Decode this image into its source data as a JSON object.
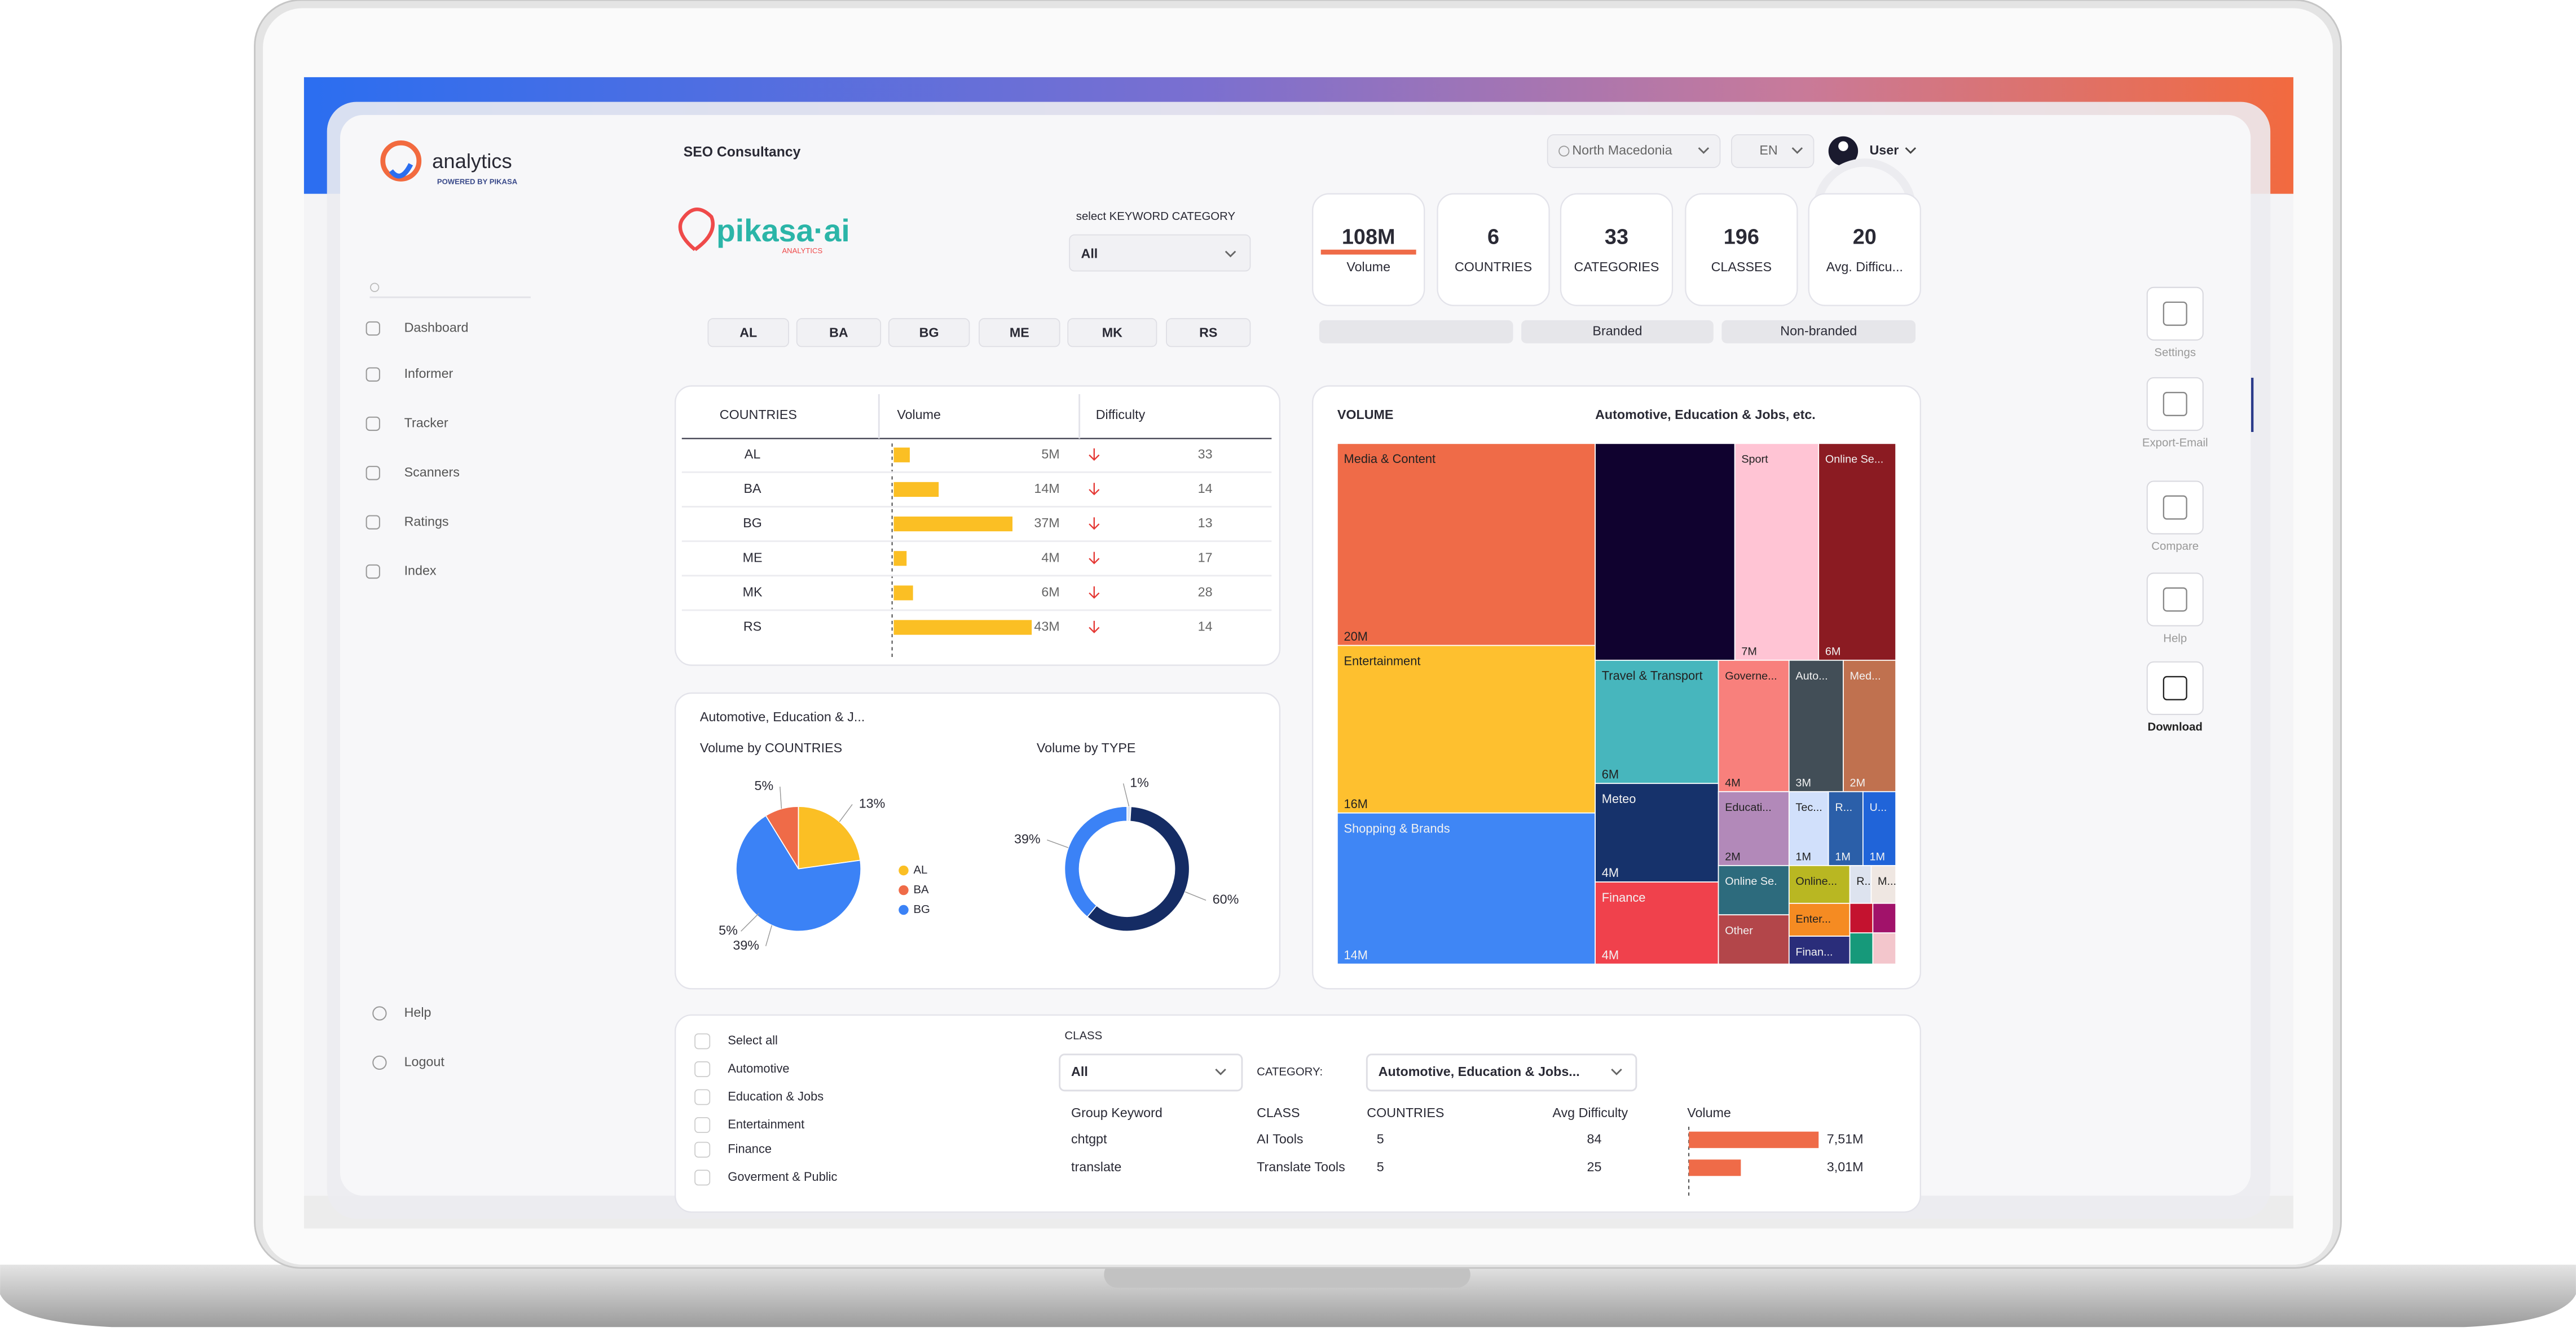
{
  "header": {
    "app_name": "analytics",
    "powered_by": "POWERED BY PIKASA",
    "page_title": "SEO Consultancy",
    "region": "North Macedonia",
    "language": "EN",
    "user": "User"
  },
  "brand": {
    "name": "pikasa·ai",
    "tagline": "ANALYTICS"
  },
  "nav": {
    "items": [
      "Dashboard",
      "Informer",
      "Tracker",
      "Scanners",
      "Ratings",
      "Index"
    ],
    "bottom": [
      "Help",
      "Logout"
    ]
  },
  "filters": {
    "keyword_category_label": "select KEYWORD CATEGORY",
    "keyword_category": "All",
    "countries": [
      "AL",
      "BA",
      "BG",
      "ME",
      "MK",
      "RS"
    ],
    "types": [
      "Branded",
      "Non-branded"
    ]
  },
  "kpis": [
    {
      "value": "108M",
      "label": "Volume"
    },
    {
      "value": "6",
      "label": "COUNTRIES"
    },
    {
      "value": "33",
      "label": "CATEGORIES"
    },
    {
      "value": "196",
      "label": "CLASSES"
    },
    {
      "value": "20",
      "label": "Avg. Difficu..."
    }
  ],
  "countries_table": {
    "columns": [
      "COUNTRIES",
      "Volume",
      "Difficulty"
    ],
    "bar_color": "#fbbf24",
    "rows": [
      {
        "country": "AL",
        "volume": 5,
        "volume_label": "5M",
        "difficulty": 33
      },
      {
        "country": "BA",
        "volume": 14,
        "volume_label": "14M",
        "difficulty": 14
      },
      {
        "country": "BG",
        "volume": 37,
        "volume_label": "37M",
        "difficulty": 13
      },
      {
        "country": "ME",
        "volume": 4,
        "volume_label": "4M",
        "difficulty": 17
      },
      {
        "country": "MK",
        "volume": 6,
        "volume_label": "6M",
        "difficulty": 28
      },
      {
        "country": "RS",
        "volume": 43,
        "volume_label": "43M",
        "difficulty": 14
      }
    ]
  },
  "distribution": {
    "title": "Automotive, Education & J...",
    "by_countries": {
      "type": "pie",
      "title": "Volume by COUNTRIES",
      "categories": [
        "AL",
        "BA",
        "BG"
      ],
      "values": [
        13,
        5,
        39
      ],
      "value_labels": [
        "13%",
        "5%",
        "39%"
      ],
      "colors": [
        "#fbbf24",
        "#ef6b48",
        "#3b82f6"
      ],
      "annotations": [
        "5%"
      ]
    },
    "by_type": {
      "type": "donut",
      "title": "Volume by TYPE",
      "values": [
        1,
        60,
        39
      ],
      "value_labels": [
        "1%",
        "60%",
        "39%"
      ],
      "colors": [
        "#dbe4f3",
        "#152c64",
        "#3b82f6"
      ]
    }
  },
  "treemap": {
    "type": "treemap",
    "title": "VOLUME",
    "subtitle": "Automotive, Education & Jobs, etc.",
    "cells": [
      {
        "name": "Media & Content",
        "value": 20,
        "value_label": "20M",
        "color": "#ef6b48"
      },
      {
        "name": "Entertainment",
        "value": 16,
        "value_label": "16M",
        "color": "#fec02f"
      },
      {
        "name": "Shopping & Brands",
        "value": 14,
        "value_label": "14M",
        "color": "#3f86f5"
      },
      {
        "name": null,
        "value": null,
        "value_label": null,
        "color": "#10022f"
      },
      {
        "name": "Sport",
        "value": 7,
        "value_label": "7M",
        "color": "#ffc4d4"
      },
      {
        "name": "Online Se...",
        "value": 6,
        "value_label": "6M",
        "color": "#8b1b22"
      },
      {
        "name": "Travel & Transport",
        "value": 6,
        "value_label": "6M",
        "color": "#47b6bd"
      },
      {
        "name": "Governe...",
        "value": 4,
        "value_label": "4M",
        "color": "#f8807c"
      },
      {
        "name": "Auto...",
        "value": 3,
        "value_label": "3M",
        "color": "#424e57"
      },
      {
        "name": "Med...",
        "value": 2,
        "value_label": "2M",
        "color": "#c0714f"
      },
      {
        "name": "Meteo",
        "value": 4,
        "value_label": "4M",
        "color": "#16326b"
      },
      {
        "name": "Finance",
        "value": 4,
        "value_label": "4M",
        "color": "#f0414c"
      },
      {
        "name": "Educati...",
        "value": 2,
        "value_label": "2M",
        "color": "#b289b9"
      },
      {
        "name": "Tec...",
        "value": 1,
        "value_label": "1M",
        "color": "#d1e0fb"
      },
      {
        "name": "R...",
        "value": 1,
        "value_label": "1M",
        "color": "#2b5fa9"
      },
      {
        "name": "U...",
        "value": 1,
        "value_label": "1M",
        "color": "#2064d9"
      },
      {
        "name": "Online Se.",
        "value": null,
        "value_label": null,
        "color": "#2d6b7d"
      },
      {
        "name": "Other",
        "value": null,
        "value_label": null,
        "color": "#b3464a"
      },
      {
        "name": "Online...",
        "value": null,
        "value_label": null,
        "color": "#b9b722"
      },
      {
        "name": "R..",
        "value": null,
        "value_label": null,
        "color": "#dde3ef"
      },
      {
        "name": "M...",
        "value": null,
        "value_label": null,
        "color": "#efe7e2"
      },
      {
        "name": "Enter...",
        "value": null,
        "value_label": null,
        "color": "#f58b22"
      },
      {
        "name": "Finan...",
        "value": null,
        "value_label": null,
        "color": "#2a2d7a"
      },
      {
        "name": null,
        "value": null,
        "value_label": null,
        "color": "#c4122f"
      },
      {
        "name": null,
        "value": null,
        "value_label": null,
        "color": "#a1126a"
      },
      {
        "name": null,
        "value": null,
        "value_label": null,
        "color": "#16997a"
      },
      {
        "name": null,
        "value": null,
        "value_label": null,
        "color": "#f3c6cc"
      }
    ]
  },
  "keyword_filter": {
    "categories": [
      "Select all",
      "Automotive",
      "Education & Jobs",
      "Entertainment",
      "Finance",
      "Goverment & Public"
    ],
    "class_label": "CLASS",
    "class": "All",
    "category_label": "CATEGORY:",
    "category": "Automotive, Education & Jobs..."
  },
  "keywords_table": {
    "columns": [
      "Group Keyword",
      "CLASS",
      "COUNTRIES",
      "Avg Difficulty",
      "Volume"
    ],
    "bar_color": "#ef6b48",
    "rows": [
      {
        "keyword": "chtgpt",
        "class": "AI Tools",
        "countries": 5,
        "difficulty": 84,
        "volume": 7.51,
        "volume_label": "7,51M"
      },
      {
        "keyword": "translate",
        "class": "Translate Tools",
        "countries": 5,
        "difficulty": 25,
        "volume": 3.01,
        "volume_label": "3,01M"
      }
    ]
  },
  "tools": [
    "Settings",
    "Export-Email",
    "Compare",
    "Help",
    "Download"
  ]
}
